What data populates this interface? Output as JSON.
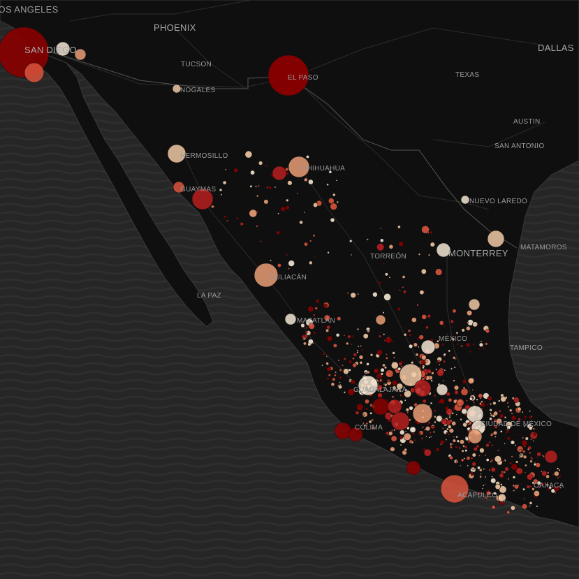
{
  "map": {
    "style": "dark basemap",
    "colors": {
      "ocean": "#262626",
      "land": "#0f0f0f",
      "road": "#3a3a3a",
      "label": "#9a9a9a",
      "point_scale": [
        "#f3e6d3",
        "#f0c9a5",
        "#e99e75",
        "#d8543c",
        "#b81f1f",
        "#8b0000"
      ]
    },
    "city_labels": [
      {
        "id": "los-angeles",
        "text": "LOS ANGELES"
      },
      {
        "id": "phoenix",
        "text": "PHOENIX"
      },
      {
        "id": "dallas",
        "text": "DALLAS"
      },
      {
        "id": "san-diego",
        "text": "SAN DIEGO"
      },
      {
        "id": "tucson",
        "text": "TUCSON"
      },
      {
        "id": "el-paso",
        "text": "EL PASO"
      },
      {
        "id": "texas",
        "text": "TEXAS"
      },
      {
        "id": "austin",
        "text": "AUSTIN"
      },
      {
        "id": "san-antonio",
        "text": "SAN ANTONIO"
      },
      {
        "id": "nogales",
        "text": "NOGALES"
      },
      {
        "id": "hermosillo",
        "text": "HERMOSILLO"
      },
      {
        "id": "chihuahua",
        "text": "CHIHUAHUA"
      },
      {
        "id": "guaymas",
        "text": "GUAYMAS"
      },
      {
        "id": "nuevo-laredo",
        "text": "NUEVO LAREDO"
      },
      {
        "id": "monterrey",
        "text": "MONTERREY"
      },
      {
        "id": "matamoros",
        "text": "MATAMOROS"
      },
      {
        "id": "torreon",
        "text": "TORREÓN"
      },
      {
        "id": "culiacan",
        "text": "CULIACÁN"
      },
      {
        "id": "la-paz",
        "text": "LA PAZ"
      },
      {
        "id": "mazatlan",
        "text": "MAZATLÁN"
      },
      {
        "id": "mexico",
        "text": "MÉXICO"
      },
      {
        "id": "tampico",
        "text": "TAMPICO"
      },
      {
        "id": "guadalajara",
        "text": "GUADALAJARA"
      },
      {
        "id": "colima",
        "text": "COLIMA"
      },
      {
        "id": "ciudad-de-mexico",
        "text": "CIUDAD DE MÉXICO"
      },
      {
        "id": "oaxaca",
        "text": "OAXACA"
      },
      {
        "id": "acapulco",
        "text": "ACAPULCO"
      }
    ]
  }
}
